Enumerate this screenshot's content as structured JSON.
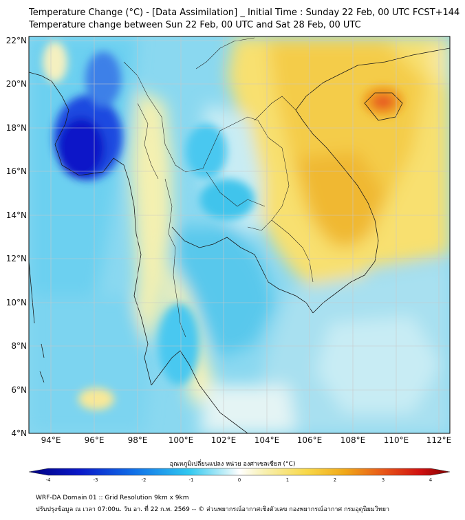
{
  "title": {
    "line1": "Temperature Change (°C) - [Data Assimilation] _ Initial Time : Sunday 22 Feb, 00 UTC FCST+144",
    "line2": "Temperature change between Sun 22 Feb, 00 UTC and Sat 28 Feb, 00 UTC"
  },
  "axes": {
    "lon_labels": [
      "94°E",
      "96°E",
      "98°E",
      "100°E",
      "102°E",
      "104°E",
      "106°E",
      "108°E",
      "110°E",
      "112°E"
    ],
    "lat_labels": [
      "22°N",
      "20°N",
      "18°N",
      "16°N",
      "14°N",
      "12°N",
      "10°N",
      "8°N",
      "6°N",
      "4°N"
    ]
  },
  "colorbar": {
    "title": "อุณหภูมิเปลี่ยนแปลง หน่วย องศาเซลเซียส (°C)",
    "ticks": [
      "-4",
      "-3",
      "-2",
      "-1",
      "0",
      "1",
      "2",
      "3",
      "4"
    ],
    "range": [
      -4,
      4
    ]
  },
  "footer": {
    "line1": "WRF-DA Domain 01 :: Grid Resolution 9km x 9km",
    "line2": "ปรับปรุงข้อมูล ณ เวลา 07:00น. วัน อา. ที่ 22 ก.พ. 2569 -- © ส่วนพยากรณ์อากาศเชิงตัวเลข  กองพยากรณ์อากาศ  กรมอุตุนิยมวิทยา"
  },
  "colors": {
    "cold_deep": "#1020d8",
    "cold": "#38c8f0",
    "neutral": "#f2f8f8",
    "warm": "#f8e070",
    "warm_deep": "#f0a818",
    "hot": "#e83020"
  }
}
